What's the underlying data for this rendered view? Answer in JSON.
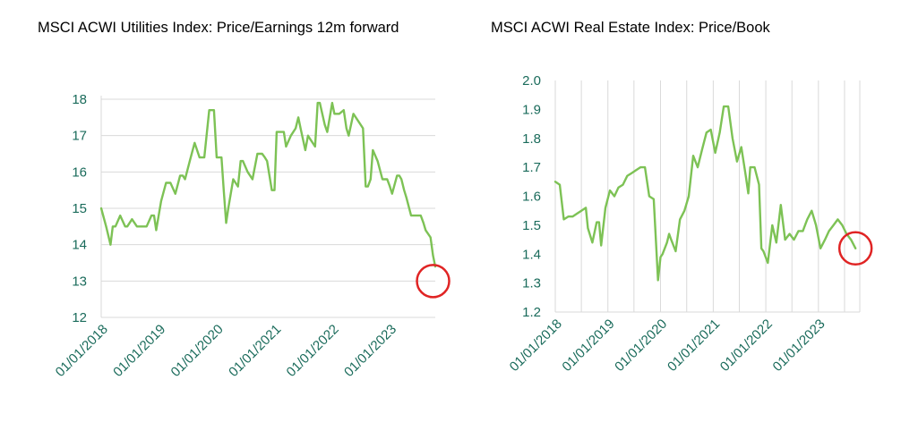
{
  "colors": {
    "title": "#1a6b5b",
    "axis_text": "#1a6b5b",
    "grid": "#d9d9d9",
    "line": "#7dc255",
    "highlight_circle": "#e02424"
  },
  "chart_data": [
    {
      "type": "line",
      "title": "MSCI ACWI Utilities Index: Price/Earnings 12m forward",
      "xlabel": "",
      "ylabel": "",
      "ylim": [
        12,
        18
      ],
      "yticks": [
        12,
        13,
        14,
        15,
        16,
        17,
        18
      ],
      "xlim": [
        "2018-01-01",
        "2023-10-15"
      ],
      "xticks": [
        "01/01/2018",
        "01/01/2019",
        "01/01/2020",
        "01/01/2021",
        "01/01/2022",
        "01/01/2023"
      ],
      "xtick_dates": [
        "2018-01-01",
        "2019-01-01",
        "2020-01-01",
        "2021-01-01",
        "2022-01-01",
        "2023-01-01"
      ],
      "grid": "horizontal",
      "annotation": {
        "type": "circle",
        "x": "2023-10-01",
        "y": 13.0
      },
      "series": [
        {
          "x": [
            "2018-01-01",
            "2018-02-01",
            "2018-03-01",
            "2018-03-15",
            "2018-04-01",
            "2018-05-01",
            "2018-06-01",
            "2018-06-15",
            "2018-07-15",
            "2018-08-15",
            "2018-09-15",
            "2018-10-15",
            "2018-11-15",
            "2018-12-01",
            "2018-12-15",
            "2019-01-15",
            "2019-02-15",
            "2019-03-15",
            "2019-04-15",
            "2019-05-15",
            "2019-06-01",
            "2019-06-15",
            "2019-07-15",
            "2019-08-15",
            "2019-09-15",
            "2019-10-15",
            "2019-11-15",
            "2019-12-15",
            "2020-01-01",
            "2020-01-15",
            "2020-02-01",
            "2020-02-15",
            "2020-03-01",
            "2020-03-15",
            "2020-04-15",
            "2020-05-15",
            "2020-06-01",
            "2020-06-15",
            "2020-07-15",
            "2020-08-15",
            "2020-09-15",
            "2020-10-15",
            "2020-11-01",
            "2020-11-15",
            "2020-12-15",
            "2021-01-01",
            "2021-01-15",
            "2021-02-15",
            "2021-03-01",
            "2021-03-15",
            "2021-04-15",
            "2021-05-15",
            "2021-06-01",
            "2021-06-15",
            "2021-07-15",
            "2021-08-01",
            "2021-08-15",
            "2021-09-15",
            "2021-10-01",
            "2021-10-15",
            "2021-11-15",
            "2021-12-01",
            "2022-01-01",
            "2022-01-15",
            "2022-02-15",
            "2022-03-15",
            "2022-04-01",
            "2022-04-15",
            "2022-05-15",
            "2022-06-15",
            "2022-07-15",
            "2022-08-01",
            "2022-08-15",
            "2022-09-01",
            "2022-09-15",
            "2022-10-15",
            "2022-11-15",
            "2022-12-15",
            "2023-01-01",
            "2023-01-15",
            "2023-02-15",
            "2023-03-01",
            "2023-03-15",
            "2023-04-01",
            "2023-04-15",
            "2023-05-15",
            "2023-06-15",
            "2023-07-15",
            "2023-08-01",
            "2023-08-15",
            "2023-09-15",
            "2023-10-01",
            "2023-10-15"
          ],
          "y": [
            15.0,
            14.5,
            14.0,
            14.5,
            14.5,
            14.8,
            14.5,
            14.5,
            14.7,
            14.5,
            14.5,
            14.5,
            14.8,
            14.8,
            14.4,
            15.2,
            15.7,
            15.7,
            15.4,
            15.9,
            15.9,
            15.8,
            16.3,
            16.8,
            16.4,
            16.4,
            17.7,
            17.7,
            16.4,
            16.4,
            16.4,
            15.5,
            14.6,
            15.0,
            15.8,
            15.6,
            16.3,
            16.3,
            16.0,
            15.8,
            16.5,
            16.5,
            16.4,
            16.3,
            15.5,
            15.5,
            17.1,
            17.1,
            17.1,
            16.7,
            17.0,
            17.2,
            17.5,
            17.2,
            16.6,
            17.0,
            16.9,
            16.7,
            17.9,
            17.9,
            17.3,
            17.1,
            17.9,
            17.6,
            17.6,
            17.7,
            17.2,
            17.0,
            17.6,
            17.4,
            17.2,
            15.6,
            15.6,
            15.8,
            16.6,
            16.3,
            15.8,
            15.8,
            15.6,
            15.4,
            15.9,
            15.9,
            15.8,
            15.5,
            15.3,
            14.8,
            14.8,
            14.8,
            14.6,
            14.4,
            14.2,
            13.7,
            13.4
          ]
        }
      ]
    },
    {
      "type": "line",
      "title": "MSCI ACWI Real Estate Index: Price/Book",
      "xlabel": "",
      "ylabel": "",
      "ylim": [
        1.2,
        2.0
      ],
      "yticks": [
        "1.2",
        "1.3",
        "1.4",
        "1.5",
        "1.6",
        "1.7",
        "1.8",
        "1.9",
        "2.0"
      ],
      "xlim": [
        "2018-01-01",
        "2023-10-15"
      ],
      "xticks": [
        "01/01/2018",
        "01/01/2019",
        "01/01/2020",
        "01/01/2021",
        "01/01/2022",
        "01/01/2023"
      ],
      "xtick_dates": [
        "2018-01-01",
        "2019-01-01",
        "2020-01-01",
        "2021-01-01",
        "2022-01-01",
        "2023-01-01"
      ],
      "grid": "vertical",
      "annotation": {
        "type": "circle",
        "x": "2023-09-15",
        "y": 1.42
      },
      "series": [
        {
          "x": [
            "2018-01-01",
            "2018-02-01",
            "2018-03-01",
            "2018-04-01",
            "2018-05-01",
            "2018-06-01",
            "2018-07-01",
            "2018-08-01",
            "2018-08-15",
            "2018-09-15",
            "2018-10-15",
            "2018-11-01",
            "2018-11-15",
            "2018-12-15",
            "2019-01-15",
            "2019-02-15",
            "2019-03-15",
            "2019-04-15",
            "2019-05-15",
            "2019-06-15",
            "2019-07-15",
            "2019-08-15",
            "2019-09-15",
            "2019-10-15",
            "2019-11-15",
            "2019-12-15",
            "2020-01-01",
            "2020-01-15",
            "2020-02-15",
            "2020-03-01",
            "2020-03-15",
            "2020-04-15",
            "2020-05-15",
            "2020-06-15",
            "2020-07-15",
            "2020-08-15",
            "2020-09-15",
            "2020-10-15",
            "2020-11-15",
            "2020-12-15",
            "2021-01-15",
            "2021-02-15",
            "2021-03-15",
            "2021-04-15",
            "2021-05-15",
            "2021-06-15",
            "2021-07-15",
            "2021-08-15",
            "2021-09-01",
            "2021-09-15",
            "2021-10-15",
            "2021-11-15",
            "2021-12-01",
            "2021-12-15",
            "2022-01-15",
            "2022-02-15",
            "2022-03-15",
            "2022-04-15",
            "2022-05-15",
            "2022-06-15",
            "2022-07-15",
            "2022-08-15",
            "2022-09-15",
            "2022-10-15",
            "2022-11-15",
            "2022-12-15",
            "2023-01-15",
            "2023-02-15",
            "2023-03-15",
            "2023-04-15",
            "2023-05-15",
            "2023-06-15",
            "2023-07-15",
            "2023-08-15",
            "2023-09-15"
          ],
          "y": [
            1.65,
            1.64,
            1.52,
            1.53,
            1.53,
            1.54,
            1.55,
            1.56,
            1.49,
            1.44,
            1.51,
            1.51,
            1.43,
            1.56,
            1.62,
            1.6,
            1.63,
            1.64,
            1.67,
            1.68,
            1.69,
            1.7,
            1.7,
            1.6,
            1.59,
            1.31,
            1.39,
            1.4,
            1.44,
            1.47,
            1.45,
            1.41,
            1.52,
            1.55,
            1.6,
            1.74,
            1.7,
            1.76,
            1.82,
            1.83,
            1.75,
            1.82,
            1.91,
            1.91,
            1.8,
            1.72,
            1.77,
            1.67,
            1.61,
            1.7,
            1.7,
            1.64,
            1.42,
            1.41,
            1.37,
            1.5,
            1.44,
            1.57,
            1.45,
            1.47,
            1.45,
            1.48,
            1.48,
            1.52,
            1.55,
            1.5,
            1.42,
            1.45,
            1.48,
            1.5,
            1.52,
            1.5,
            1.47,
            1.45,
            1.42
          ]
        }
      ]
    }
  ]
}
